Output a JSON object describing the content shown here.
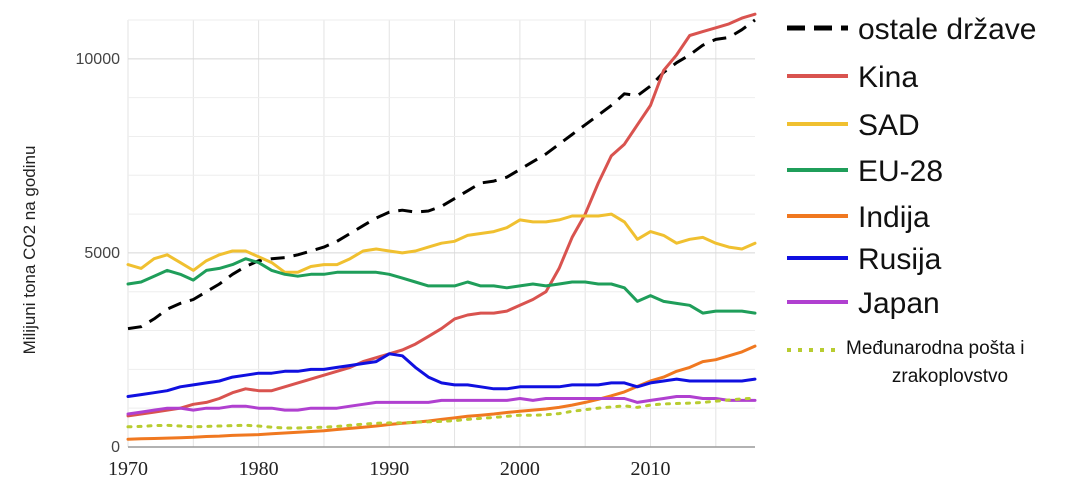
{
  "chart_data": {
    "type": "line",
    "ylabel": "Milijuni tona CO2 na godinu",
    "xlim": [
      1970,
      2018
    ],
    "ylim": [
      0,
      11000
    ],
    "x_ticks": [
      "1970",
      "1980",
      "1990",
      "2000",
      "2010"
    ],
    "y_ticks": [
      "0",
      "5000",
      "10000"
    ],
    "grid": true,
    "legend_position": "right",
    "series": [
      {
        "name": "ostale države",
        "color": "#000000",
        "dash": "dashed",
        "x": [
          1970,
          1971,
          1972,
          1973,
          1974,
          1975,
          1976,
          1977,
          1978,
          1979,
          1980,
          1981,
          1982,
          1983,
          1984,
          1985,
          1986,
          1987,
          1988,
          1989,
          1990,
          1991,
          1992,
          1993,
          1994,
          1995,
          1996,
          1997,
          1998,
          1999,
          2000,
          2001,
          2002,
          2003,
          2004,
          2005,
          2006,
          2007,
          2008,
          2009,
          2010,
          2011,
          2012,
          2013,
          2014,
          2015,
          2016,
          2017,
          2018
        ],
        "y": [
          3050,
          3100,
          3300,
          3550,
          3700,
          3800,
          4000,
          4200,
          4450,
          4650,
          4800,
          4850,
          4880,
          4950,
          5050,
          5150,
          5300,
          5500,
          5700,
          5900,
          6050,
          6100,
          6050,
          6080,
          6200,
          6400,
          6600,
          6800,
          6850,
          6950,
          7150,
          7350,
          7550,
          7800,
          8050,
          8300,
          8550,
          8800,
          9100,
          9050,
          9300,
          9650,
          9900,
          10100,
          10350,
          10500,
          10550,
          10750,
          11000
        ]
      },
      {
        "name": "Kina",
        "color": "#d9534f",
        "x": [
          1970,
          1971,
          1972,
          1973,
          1974,
          1975,
          1976,
          1977,
          1978,
          1979,
          1980,
          1981,
          1982,
          1983,
          1984,
          1985,
          1986,
          1987,
          1988,
          1989,
          1990,
          1991,
          1992,
          1993,
          1994,
          1995,
          1996,
          1997,
          1998,
          1999,
          2000,
          2001,
          2002,
          2003,
          2004,
          2005,
          2006,
          2007,
          2008,
          2009,
          2010,
          2011,
          2012,
          2013,
          2014,
          2015,
          2016,
          2017,
          2018
        ],
        "y": [
          800,
          850,
          900,
          950,
          1000,
          1100,
          1150,
          1250,
          1400,
          1500,
          1450,
          1450,
          1550,
          1650,
          1750,
          1850,
          1950,
          2050,
          2200,
          2300,
          2400,
          2500,
          2650,
          2850,
          3050,
          3300,
          3400,
          3450,
          3450,
          3500,
          3650,
          3800,
          4000,
          4600,
          5400,
          6000,
          6800,
          7500,
          7800,
          8300,
          8800,
          9700,
          10100,
          10600,
          10700,
          10800,
          10900,
          11050,
          11150
        ]
      },
      {
        "name": "SAD",
        "color": "#f0c030",
        "x": [
          1970,
          1971,
          1972,
          1973,
          1974,
          1975,
          1976,
          1977,
          1978,
          1979,
          1980,
          1981,
          1982,
          1983,
          1984,
          1985,
          1986,
          1987,
          1988,
          1989,
          1990,
          1991,
          1992,
          1993,
          1994,
          1995,
          1996,
          1997,
          1998,
          1999,
          2000,
          2001,
          2002,
          2003,
          2004,
          2005,
          2006,
          2007,
          2008,
          2009,
          2010,
          2011,
          2012,
          2013,
          2014,
          2015,
          2016,
          2017,
          2018
        ],
        "y": [
          4700,
          4600,
          4850,
          4950,
          4750,
          4550,
          4800,
          4950,
          5050,
          5050,
          4900,
          4750,
          4500,
          4500,
          4650,
          4700,
          4700,
          4850,
          5050,
          5100,
          5050,
          5000,
          5050,
          5150,
          5250,
          5300,
          5450,
          5500,
          5550,
          5650,
          5850,
          5800,
          5800,
          5850,
          5950,
          5950,
          5950,
          6000,
          5800,
          5350,
          5550,
          5450,
          5250,
          5350,
          5400,
          5250,
          5150,
          5100,
          5250
        ]
      },
      {
        "name": "EU-28",
        "color": "#1f9e5a",
        "x": [
          1970,
          1971,
          1972,
          1973,
          1974,
          1975,
          1976,
          1977,
          1978,
          1979,
          1980,
          1981,
          1982,
          1983,
          1984,
          1985,
          1986,
          1987,
          1988,
          1989,
          1990,
          1991,
          1992,
          1993,
          1994,
          1995,
          1996,
          1997,
          1998,
          1999,
          2000,
          2001,
          2002,
          2003,
          2004,
          2005,
          2006,
          2007,
          2008,
          2009,
          2010,
          2011,
          2012,
          2013,
          2014,
          2015,
          2016,
          2017,
          2018
        ],
        "y": [
          4200,
          4250,
          4400,
          4550,
          4450,
          4300,
          4550,
          4600,
          4700,
          4850,
          4750,
          4550,
          4450,
          4400,
          4450,
          4450,
          4500,
          4500,
          4500,
          4500,
          4450,
          4350,
          4250,
          4150,
          4150,
          4150,
          4250,
          4150,
          4150,
          4100,
          4150,
          4200,
          4150,
          4200,
          4250,
          4250,
          4200,
          4200,
          4100,
          3750,
          3900,
          3750,
          3700,
          3650,
          3450,
          3500,
          3500,
          3500,
          3450
        ]
      },
      {
        "name": "Indija",
        "color": "#f07820",
        "x": [
          1970,
          1971,
          1972,
          1973,
          1974,
          1975,
          1976,
          1977,
          1978,
          1979,
          1980,
          1981,
          1982,
          1983,
          1984,
          1985,
          1986,
          1987,
          1988,
          1989,
          1990,
          1991,
          1992,
          1993,
          1994,
          1995,
          1996,
          1997,
          1998,
          1999,
          2000,
          2001,
          2002,
          2003,
          2004,
          2005,
          2006,
          2007,
          2008,
          2009,
          2010,
          2011,
          2012,
          2013,
          2014,
          2015,
          2016,
          2017,
          2018
        ],
        "y": [
          200,
          210,
          220,
          230,
          240,
          250,
          270,
          280,
          300,
          310,
          320,
          340,
          360,
          380,
          400,
          420,
          450,
          480,
          510,
          540,
          580,
          610,
          640,
          670,
          710,
          750,
          790,
          820,
          850,
          890,
          920,
          950,
          980,
          1020,
          1080,
          1150,
          1230,
          1320,
          1420,
          1560,
          1700,
          1800,
          1950,
          2050,
          2200,
          2250,
          2350,
          2450,
          2600
        ]
      },
      {
        "name": "Rusija",
        "color": "#1010e0",
        "x": [
          1970,
          1971,
          1972,
          1973,
          1974,
          1975,
          1976,
          1977,
          1978,
          1979,
          1980,
          1981,
          1982,
          1983,
          1984,
          1985,
          1986,
          1987,
          1988,
          1989,
          1990,
          1991,
          1992,
          1993,
          1994,
          1995,
          1996,
          1997,
          1998,
          1999,
          2000,
          2001,
          2002,
          2003,
          2004,
          2005,
          2006,
          2007,
          2008,
          2009,
          2010,
          2011,
          2012,
          2013,
          2014,
          2015,
          2016,
          2017,
          2018
        ],
        "y": [
          1300,
          1350,
          1400,
          1450,
          1550,
          1600,
          1650,
          1700,
          1800,
          1850,
          1900,
          1900,
          1950,
          1950,
          2000,
          2000,
          2050,
          2100,
          2150,
          2200,
          2400,
          2350,
          2050,
          1800,
          1650,
          1600,
          1600,
          1550,
          1500,
          1500,
          1550,
          1550,
          1550,
          1550,
          1600,
          1600,
          1600,
          1650,
          1650,
          1550,
          1650,
          1700,
          1750,
          1700,
          1700,
          1700,
          1700,
          1700,
          1750
        ]
      },
      {
        "name": "Japan",
        "color": "#b040d0",
        "x": [
          1970,
          1971,
          1972,
          1973,
          1974,
          1975,
          1976,
          1977,
          1978,
          1979,
          1980,
          1981,
          1982,
          1983,
          1984,
          1985,
          1986,
          1987,
          1988,
          1989,
          1990,
          1991,
          1992,
          1993,
          1994,
          1995,
          1996,
          1997,
          1998,
          1999,
          2000,
          2001,
          2002,
          2003,
          2004,
          2005,
          2006,
          2007,
          2008,
          2009,
          2010,
          2011,
          2012,
          2013,
          2014,
          2015,
          2016,
          2017,
          2018
        ],
        "y": [
          850,
          900,
          950,
          1000,
          1000,
          950,
          1000,
          1000,
          1050,
          1050,
          1000,
          1000,
          950,
          950,
          1000,
          1000,
          1000,
          1050,
          1100,
          1150,
          1150,
          1150,
          1150,
          1150,
          1200,
          1200,
          1200,
          1200,
          1200,
          1200,
          1250,
          1200,
          1250,
          1250,
          1250,
          1250,
          1250,
          1250,
          1250,
          1150,
          1200,
          1250,
          1300,
          1300,
          1250,
          1250,
          1200,
          1200,
          1200
        ]
      },
      {
        "name": "Međunarodna pošta i zrakoplovstvo",
        "color": "#b8cc30",
        "dash": "dotted",
        "x": [
          1970,
          1971,
          1972,
          1973,
          1974,
          1975,
          1976,
          1977,
          1978,
          1979,
          1980,
          1981,
          1982,
          1983,
          1984,
          1985,
          1986,
          1987,
          1988,
          1989,
          1990,
          1991,
          1992,
          1993,
          1994,
          1995,
          1996,
          1997,
          1998,
          1999,
          2000,
          2001,
          2002,
          2003,
          2004,
          2005,
          2006,
          2007,
          2008,
          2009,
          2010,
          2011,
          2012,
          2013,
          2014,
          2015,
          2016,
          2017,
          2018
        ],
        "y": [
          520,
          530,
          550,
          560,
          540,
          520,
          530,
          540,
          550,
          560,
          540,
          510,
          490,
          490,
          500,
          510,
          530,
          560,
          590,
          610,
          620,
          620,
          640,
          650,
          660,
          680,
          710,
          740,
          760,
          790,
          820,
          820,
          830,
          860,
          920,
          960,
          1000,
          1030,
          1060,
          1020,
          1080,
          1110,
          1120,
          1130,
          1150,
          1180,
          1210,
          1240,
          1260
        ]
      }
    ],
    "legend": {
      "items": [
        {
          "label": "ostale države",
          "color": "#000000",
          "style": "dashed"
        },
        {
          "label": "Kina",
          "color": "#d9534f",
          "style": "solid"
        },
        {
          "label": "SAD",
          "color": "#f0c030",
          "style": "solid"
        },
        {
          "label": "EU-28",
          "color": "#1f9e5a",
          "style": "solid"
        },
        {
          "label": "Indija",
          "color": "#f07820",
          "style": "solid"
        },
        {
          "label": "Rusija",
          "color": "#1010e0",
          "style": "solid"
        },
        {
          "label": "Japan",
          "color": "#b040d0",
          "style": "solid"
        },
        {
          "label": "Međunarodna pošta i",
          "label2": "zrakoplovstvo",
          "color": "#b8cc30",
          "style": "dotted"
        }
      ]
    }
  }
}
